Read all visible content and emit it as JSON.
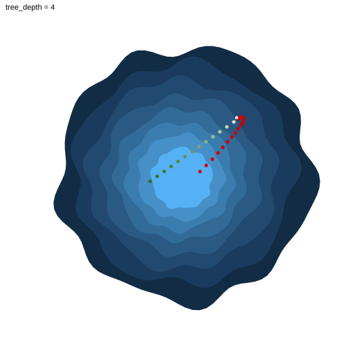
{
  "title": "tree_depth = 4",
  "colors": {
    "background": "#ffffff",
    "levels": [
      "#132c46",
      "#1a3b5d",
      "#22496f",
      "#2a5983",
      "#326a98",
      "#3b7caf",
      "#468fc7",
      "#55b1f4"
    ],
    "path_a_start": "#2e6f1a",
    "path_a_end": "#e8f2e4",
    "path_b": "#cc0000",
    "path_b_end": "#ffffff"
  },
  "legend": null
}
